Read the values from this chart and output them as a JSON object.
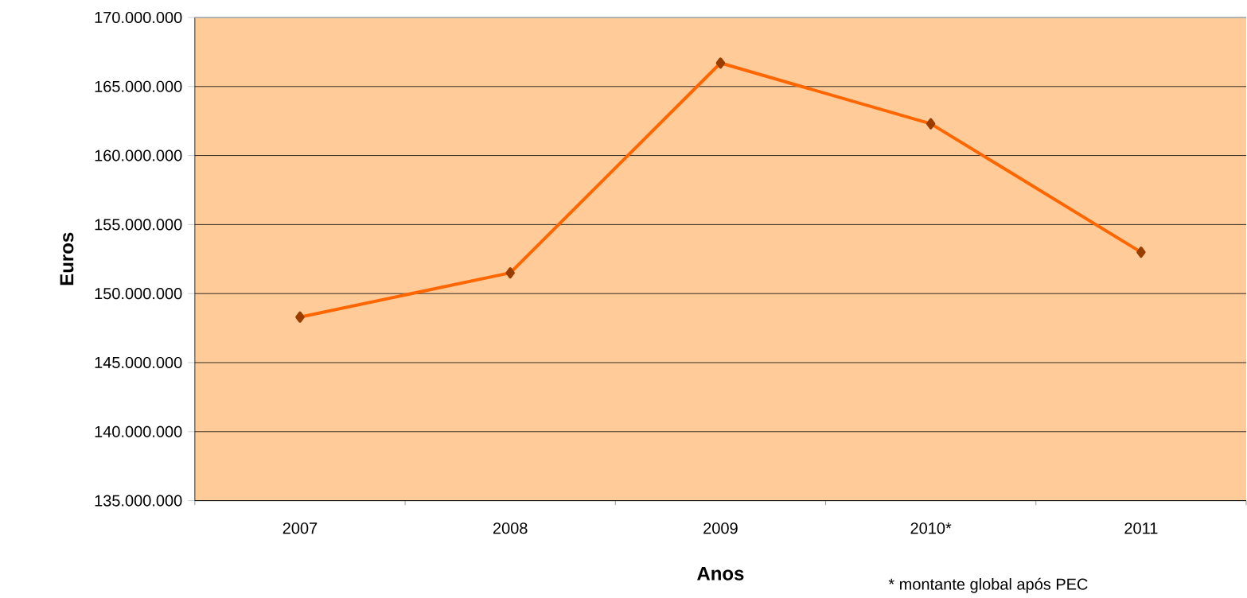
{
  "chart_data": {
    "type": "line",
    "xlabel": "Anos",
    "ylabel": "Euros",
    "categories": [
      "2007",
      "2008",
      "2009",
      "2010*",
      "2011"
    ],
    "series": [
      {
        "color": "#ff6600",
        "values": [
          148300000,
          151500000,
          166700000,
          162300000,
          153000000
        ]
      }
    ],
    "marker": "diamond",
    "line_style": "solid",
    "ylim": [
      135000000,
      170000000
    ],
    "yticks": [
      {
        "value": 135000000,
        "label": "135.000.000"
      },
      {
        "value": 140000000,
        "label": "140.000.000"
      },
      {
        "value": 145000000,
        "label": "145.000.000"
      },
      {
        "value": 150000000,
        "label": "150.000.000"
      },
      {
        "value": 155000000,
        "label": "155.000.000"
      },
      {
        "value": 160000000,
        "label": "160.000.000"
      },
      {
        "value": 165000000,
        "label": "165.000.000"
      },
      {
        "value": 170000000,
        "label": "170.000.000"
      }
    ],
    "grid": "y",
    "annotations": [
      "* montante global após PEC"
    ]
  }
}
